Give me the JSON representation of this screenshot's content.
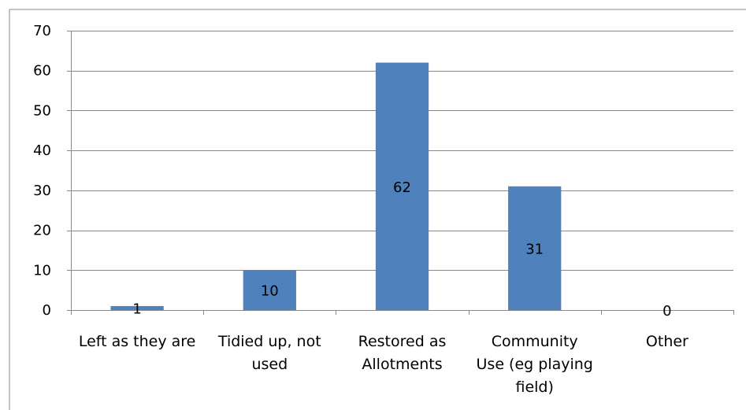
{
  "chart_data": {
    "type": "bar",
    "categories": [
      [
        "Left as they are"
      ],
      [
        "Tidied up, not",
        "used"
      ],
      [
        "Restored as",
        "Allotments"
      ],
      [
        "Community",
        "Use (eg playing",
        "field)"
      ],
      [
        "Other"
      ]
    ],
    "values": [
      1,
      10,
      62,
      31,
      0
    ],
    "data_labels": [
      "1",
      "10",
      "62",
      "31",
      "0"
    ],
    "ylim": [
      0,
      70
    ],
    "yticks": [
      0,
      10,
      20,
      30,
      40,
      50,
      60,
      70
    ],
    "title": "",
    "xlabel": "",
    "ylabel": "",
    "grid": true,
    "legend": "none",
    "colors": {
      "bar": "#4f81bd",
      "grid": "#888888",
      "axis": "#888888",
      "frame": "#888888"
    }
  }
}
